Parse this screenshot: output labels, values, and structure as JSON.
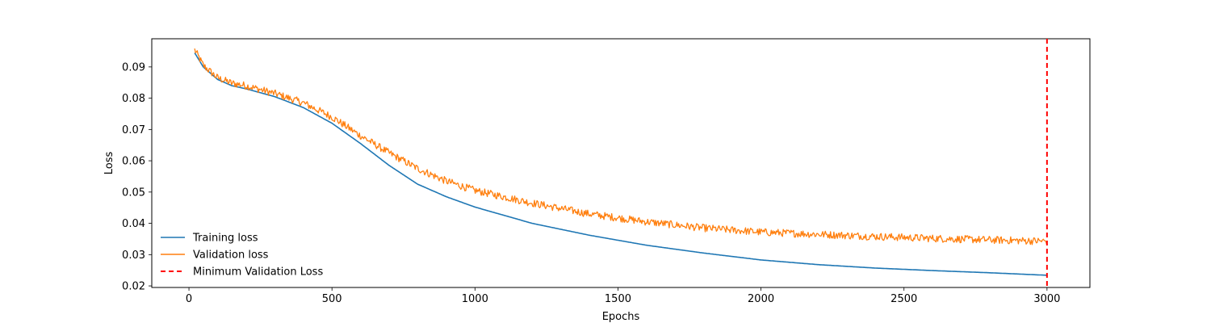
{
  "chart_data": {
    "type": "line",
    "title": "",
    "xlabel": "Epochs",
    "ylabel": "Loss",
    "xlim": [
      -130,
      3150
    ],
    "ylim": [
      0.0195,
      0.099
    ],
    "xticks": [
      0,
      500,
      1000,
      1500,
      2000,
      2500,
      3000
    ],
    "xtick_labels": [
      "0",
      "500",
      "1000",
      "1500",
      "2000",
      "2500",
      "3000"
    ],
    "yticks": [
      0.02,
      0.03,
      0.04,
      0.05,
      0.06,
      0.07,
      0.08,
      0.09
    ],
    "ytick_labels": [
      "0.02",
      "0.03",
      "0.04",
      "0.05",
      "0.06",
      "0.07",
      "0.08",
      "0.09"
    ],
    "grid": false,
    "legend_position": "lower-left",
    "series": [
      {
        "name": "Training loss",
        "color": "#1f77b4",
        "style": "solid",
        "x": [
          20,
          50,
          100,
          150,
          200,
          300,
          400,
          500,
          600,
          700,
          800,
          900,
          1000,
          1200,
          1400,
          1600,
          1800,
          2000,
          2200,
          2400,
          2600,
          2800,
          3000
        ],
        "y": [
          0.0945,
          0.09,
          0.086,
          0.084,
          0.083,
          0.0805,
          0.077,
          0.072,
          0.0655,
          0.0585,
          0.0525,
          0.0485,
          0.0452,
          0.04,
          0.0362,
          0.033,
          0.0305,
          0.0283,
          0.0268,
          0.0257,
          0.0249,
          0.0242,
          0.0234
        ]
      },
      {
        "name": "Validation loss",
        "color": "#ff7f0e",
        "style": "solid",
        "x": [
          20,
          50,
          100,
          150,
          200,
          300,
          400,
          500,
          600,
          700,
          800,
          900,
          1000,
          1200,
          1400,
          1600,
          1800,
          2000,
          2200,
          2400,
          2600,
          2800,
          3000
        ],
        "y": [
          0.0955,
          0.0905,
          0.0865,
          0.0848,
          0.084,
          0.0815,
          0.0785,
          0.074,
          0.068,
          0.0625,
          0.0575,
          0.0535,
          0.0505,
          0.0465,
          0.043,
          0.0405,
          0.0385,
          0.0372,
          0.0365,
          0.0358,
          0.0352,
          0.0347,
          0.0343
        ],
        "noise_amplitude": 0.0012
      },
      {
        "name": "Minimum Validation Loss",
        "color": "#ff0000",
        "style": "dashed",
        "type": "vline",
        "x_value": 3000
      }
    ]
  }
}
